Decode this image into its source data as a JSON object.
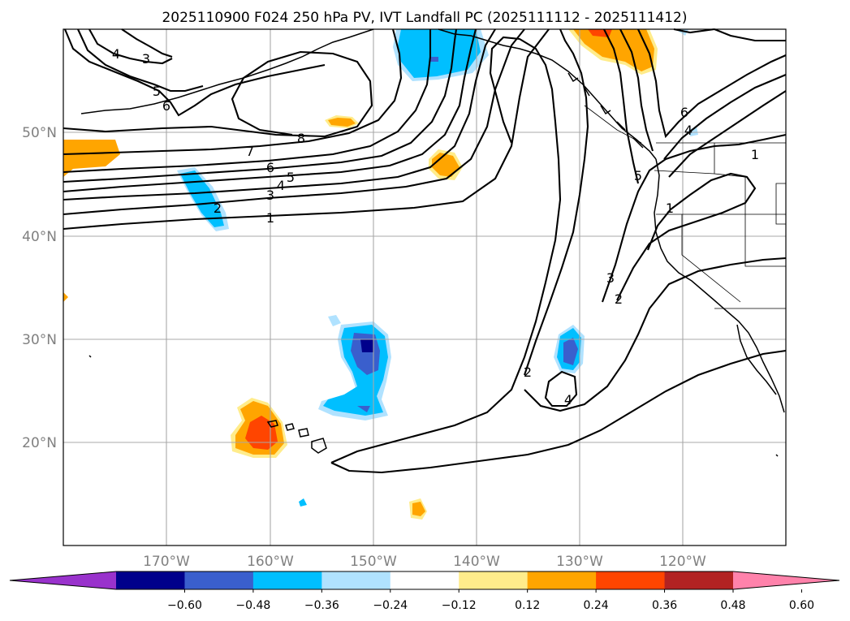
{
  "title": "2025110900 F024 250 hPa PV, IVT Landfall PC (2025111112 - 2025111412)",
  "lat_labels": [
    "50°N",
    "40°N",
    "30°N",
    "20°N"
  ],
  "lon_labels": [
    "170°W",
    "160°W",
    "150°W",
    "140°W",
    "130°W",
    "120°W"
  ],
  "colorbar": {
    "tick_labels": [
      "−0.60",
      "−0.48",
      "−0.36",
      "−0.24",
      "−0.12",
      "0.12",
      "0.24",
      "0.36",
      "0.48",
      "0.60"
    ],
    "colors": [
      "#9932cc",
      "#00008b",
      "#3a5fcd",
      "#00bfff",
      "#b0e2ff",
      "#ffffff",
      "#ffec8b",
      "#ffa500",
      "#ff4500",
      "#b22222",
      "#ff82ab"
    ]
  },
  "contour_labels": [
    "4",
    "3",
    "5",
    "6",
    "8",
    "7",
    "6",
    "5",
    "4",
    "3",
    "1",
    "2",
    "2",
    "3",
    "2",
    "4",
    "1",
    "5",
    "4",
    "6",
    "1"
  ],
  "colors": {
    "orange": "#ffa500",
    "light_orange": "#ffec8b",
    "red_orange": "#ff4500",
    "sky": "#00bfff",
    "light_sky": "#b0e2ff",
    "royal": "#3a5fcd",
    "navy": "#00008b"
  }
}
